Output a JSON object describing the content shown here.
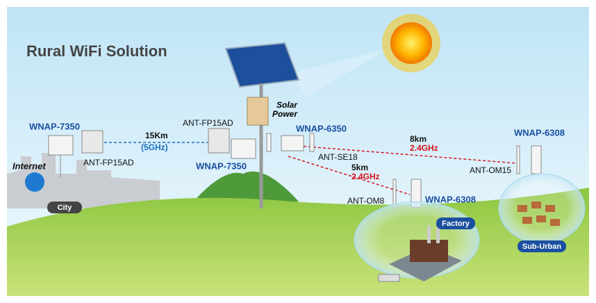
{
  "title": "Rural WiFi Solution",
  "solar_power": [
    "Solar",
    "Power"
  ],
  "internet": "Internet",
  "places": [
    "City",
    "Factory",
    "Sub-Urban"
  ],
  "devices": [
    "WNAP-7350",
    "WNAP-7350",
    "WNAP-6350",
    "WNAP-6308",
    "WNAP-6308"
  ],
  "antennas": [
    "ANT-FP15AD",
    "ANT-FP15AD",
    "ANT-SE18",
    "ANT-OM15",
    "ANT-OM8"
  ],
  "links": [
    {
      "distance": "15Km",
      "band": "(5GHz)"
    },
    {
      "distance": "8km",
      "band": "2.4GHz"
    },
    {
      "distance": "5km",
      "band": "2.4GHz"
    }
  ]
}
